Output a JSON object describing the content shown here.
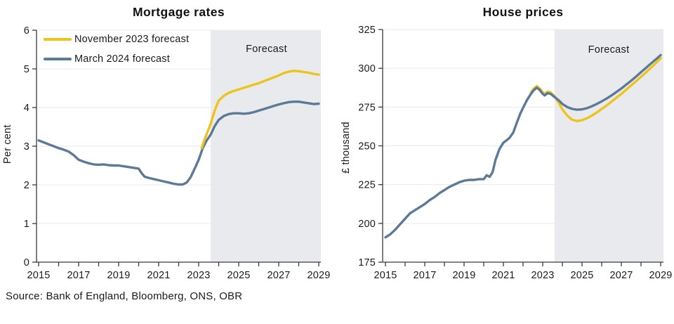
{
  "source_line": "Source: Bank of England, Bloomberg, ONS, OBR",
  "colors": {
    "november_forecast": "#ecc41d",
    "march_forecast": "#5c7a96",
    "forecast_shade": "#e8eaee",
    "grid": "#e9e9e9",
    "axis": "#3a3a3a",
    "text": "#1b1b1b"
  },
  "chart_data": [
    {
      "type": "line",
      "title": "Mortgage rates",
      "ylabel": "Per cent",
      "forecast_label": "Forecast",
      "grid": true,
      "legend_position": "top-left",
      "xlim": [
        2015,
        2029
      ],
      "ylim": [
        0,
        6
      ],
      "yticks": [
        0,
        1,
        2,
        3,
        4,
        5,
        6
      ],
      "xticks": [
        2015,
        2017,
        2019,
        2021,
        2023,
        2025,
        2027,
        2029
      ],
      "minor_xtick_step": 1,
      "forecast_start": 2023.6,
      "legend": [
        {
          "label": "November 2023 forecast",
          "color": "#ecc41d"
        },
        {
          "label": "March 2024 forecast",
          "color": "#5c7a96"
        }
      ],
      "series": [
        {
          "name": "March 2024 forecast",
          "color": "#5c7a96",
          "x": [
            2015.0,
            2015.25,
            2015.5,
            2015.75,
            2016.0,
            2016.25,
            2016.5,
            2016.75,
            2017.0,
            2017.25,
            2017.5,
            2017.75,
            2018.0,
            2018.25,
            2018.5,
            2018.75,
            2019.0,
            2019.25,
            2019.5,
            2019.75,
            2020.0,
            2020.15,
            2020.3,
            2020.5,
            2020.75,
            2021.0,
            2021.25,
            2021.5,
            2021.75,
            2022.0,
            2022.2,
            2022.4,
            2022.6,
            2022.8,
            2023.0,
            2023.2,
            2023.4,
            2023.6,
            2023.8,
            2024.0,
            2024.25,
            2024.5,
            2024.75,
            2025.0,
            2025.25,
            2025.5,
            2025.75,
            2026.0,
            2026.25,
            2026.5,
            2026.75,
            2027.0,
            2027.25,
            2027.5,
            2027.75,
            2028.0,
            2028.25,
            2028.5,
            2028.75,
            2029.0
          ],
          "y": [
            3.15,
            3.1,
            3.05,
            3.0,
            2.95,
            2.91,
            2.86,
            2.77,
            2.65,
            2.6,
            2.56,
            2.53,
            2.52,
            2.53,
            2.51,
            2.5,
            2.5,
            2.48,
            2.46,
            2.44,
            2.42,
            2.3,
            2.21,
            2.18,
            2.15,
            2.12,
            2.09,
            2.06,
            2.03,
            2.01,
            2.01,
            2.06,
            2.2,
            2.42,
            2.65,
            2.95,
            3.15,
            3.3,
            3.52,
            3.68,
            3.78,
            3.83,
            3.85,
            3.85,
            3.84,
            3.85,
            3.88,
            3.92,
            3.96,
            4.0,
            4.04,
            4.08,
            4.11,
            4.14,
            4.15,
            4.15,
            4.13,
            4.11,
            4.09,
            4.1
          ]
        },
        {
          "name": "November 2023 forecast",
          "color": "#ecc41d",
          "x": [
            2023.15,
            2023.3,
            2023.45,
            2023.6,
            2023.8,
            2024.0,
            2024.25,
            2024.5,
            2024.75,
            2025.0,
            2025.25,
            2025.5,
            2025.75,
            2026.0,
            2026.25,
            2026.5,
            2026.75,
            2027.0,
            2027.25,
            2027.5,
            2027.75,
            2028.0,
            2028.25,
            2028.5,
            2028.75,
            2029.0
          ],
          "y": [
            2.95,
            3.18,
            3.38,
            3.58,
            3.92,
            4.18,
            4.3,
            4.38,
            4.43,
            4.47,
            4.51,
            4.55,
            4.59,
            4.63,
            4.68,
            4.73,
            4.78,
            4.83,
            4.89,
            4.93,
            4.95,
            4.94,
            4.92,
            4.9,
            4.87,
            4.85
          ]
        }
      ]
    },
    {
      "type": "line",
      "title": "House prices",
      "ylabel": "£ thousand",
      "forecast_label": "Forecast",
      "grid": true,
      "legend_position": "none",
      "xlim": [
        2015,
        2029
      ],
      "ylim": [
        175,
        325
      ],
      "yticks": [
        175,
        200,
        225,
        250,
        275,
        300,
        325
      ],
      "xticks": [
        2015,
        2017,
        2019,
        2021,
        2023,
        2025,
        2027,
        2029
      ],
      "minor_xtick_step": 1,
      "forecast_start": 2023.6,
      "series": [
        {
          "name": "November 2023 forecast",
          "color": "#ecc41d",
          "x": [
            2022.4,
            2022.55,
            2022.7,
            2022.85,
            2023.0,
            2023.1,
            2023.25,
            2023.4,
            2023.6,
            2023.8,
            2024.0,
            2024.25,
            2024.5,
            2024.75,
            2025.0,
            2025.25,
            2025.5,
            2025.75,
            2026.0,
            2026.25,
            2026.5,
            2026.75,
            2027.0,
            2027.25,
            2027.5,
            2027.75,
            2028.0,
            2028.25,
            2028.5,
            2028.75,
            2029.0
          ],
          "y": [
            284.5,
            287,
            288.5,
            287,
            284.5,
            283.5,
            285,
            284.5,
            282,
            278,
            273.5,
            269.5,
            266.8,
            266,
            266.5,
            267.8,
            269.5,
            271.5,
            273.8,
            276,
            278.5,
            281,
            283.5,
            286.2,
            289,
            291.7,
            294.5,
            297.3,
            300.3,
            303.3,
            306.5
          ]
        },
        {
          "name": "March 2024 forecast",
          "color": "#5c7a96",
          "x": [
            2015.0,
            2015.25,
            2015.5,
            2015.75,
            2016.0,
            2016.25,
            2016.5,
            2016.75,
            2017.0,
            2017.25,
            2017.5,
            2017.75,
            2018.0,
            2018.25,
            2018.5,
            2018.75,
            2019.0,
            2019.25,
            2019.5,
            2019.75,
            2020.0,
            2020.15,
            2020.3,
            2020.45,
            2020.6,
            2020.8,
            2021.0,
            2021.15,
            2021.3,
            2021.5,
            2021.7,
            2021.85,
            2022.0,
            2022.2,
            2022.4,
            2022.55,
            2022.7,
            2022.85,
            2023.0,
            2023.1,
            2023.25,
            2023.4,
            2023.6,
            2023.8,
            2024.0,
            2024.25,
            2024.5,
            2024.75,
            2025.0,
            2025.25,
            2025.5,
            2025.75,
            2026.0,
            2026.25,
            2026.5,
            2026.75,
            2027.0,
            2027.25,
            2027.5,
            2027.75,
            2028.0,
            2028.25,
            2028.5,
            2028.75,
            2029.0
          ],
          "y": [
            191,
            193,
            196,
            199.5,
            203,
            206.5,
            208.5,
            210.5,
            212.5,
            215,
            217,
            219.5,
            221.5,
            223.5,
            225,
            226.5,
            227.5,
            228,
            228,
            228.5,
            228.5,
            231,
            230,
            233,
            241,
            248,
            252,
            253.5,
            255,
            258.5,
            265.5,
            270.5,
            274.5,
            279.5,
            283.5,
            286,
            287.5,
            286,
            283.5,
            282.5,
            284,
            283.5,
            281.5,
            279.5,
            277,
            275,
            273.8,
            273.3,
            273.5,
            274.3,
            275.5,
            277,
            278.7,
            280.5,
            282.5,
            284.7,
            287,
            289.5,
            292,
            294.7,
            297.5,
            300.2,
            303,
            305.7,
            308.5
          ]
        }
      ]
    }
  ]
}
